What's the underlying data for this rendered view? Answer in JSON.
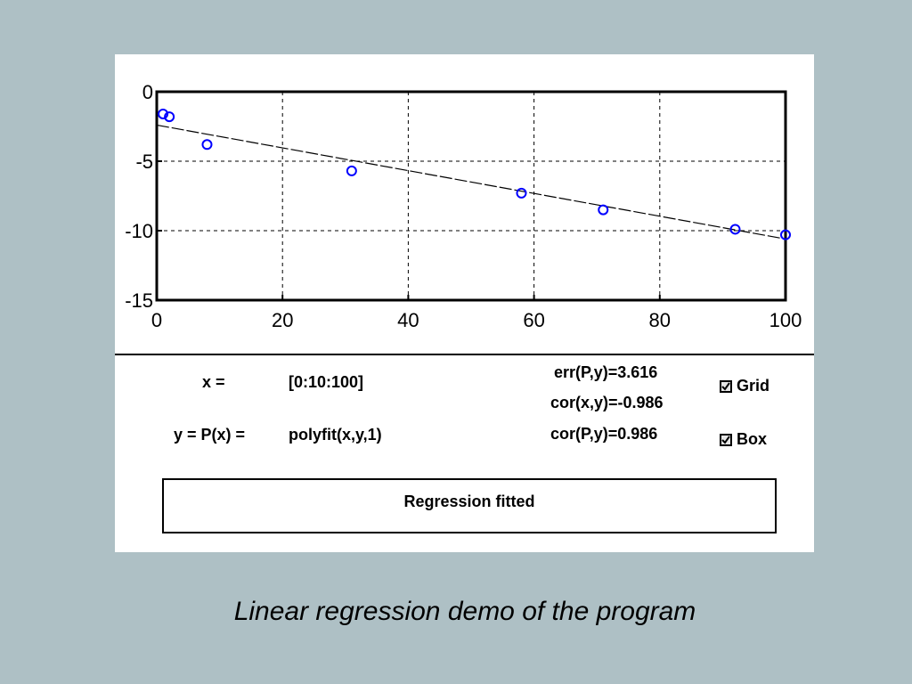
{
  "caption": "Linear regression demo of the program",
  "colors": {
    "background": "#aec0c5",
    "points": "#0000ff",
    "fit_line": "#000000",
    "grid": "#000000"
  },
  "controls": {
    "x_label": "x =",
    "x_value": "[0:10:100]",
    "y_label": "y = P(x) =",
    "y_value": "polyfit(x,y,1)"
  },
  "stats": {
    "err": "err(P,y)=3.616",
    "cor_xy": "cor(x,y)=-0.986",
    "cor_py": "cor(P,y)=0.986"
  },
  "checkboxes": {
    "grid": {
      "label": "Grid",
      "checked": true
    },
    "box": {
      "label": "Box",
      "checked": true
    }
  },
  "status": "Regression fitted",
  "chart_data": {
    "type": "scatter",
    "xlim": [
      0,
      100
    ],
    "ylim": [
      -15,
      0
    ],
    "x_ticks": [
      "0",
      "20",
      "40",
      "60",
      "80",
      "100"
    ],
    "y_ticks": [
      "0",
      "-5",
      "-10",
      "-15"
    ],
    "grid": true,
    "box": true,
    "points": [
      {
        "x": 1,
        "y": -1.6
      },
      {
        "x": 2,
        "y": -1.8
      },
      {
        "x": 8,
        "y": -3.8
      },
      {
        "x": 31,
        "y": -5.7
      },
      {
        "x": 58,
        "y": -7.3
      },
      {
        "x": 71,
        "y": -8.5
      },
      {
        "x": 92,
        "y": -9.9
      },
      {
        "x": 100,
        "y": -10.3
      }
    ],
    "fit_line": {
      "x": [
        0,
        100
      ],
      "y": [
        -2.4,
        -10.6
      ]
    }
  }
}
